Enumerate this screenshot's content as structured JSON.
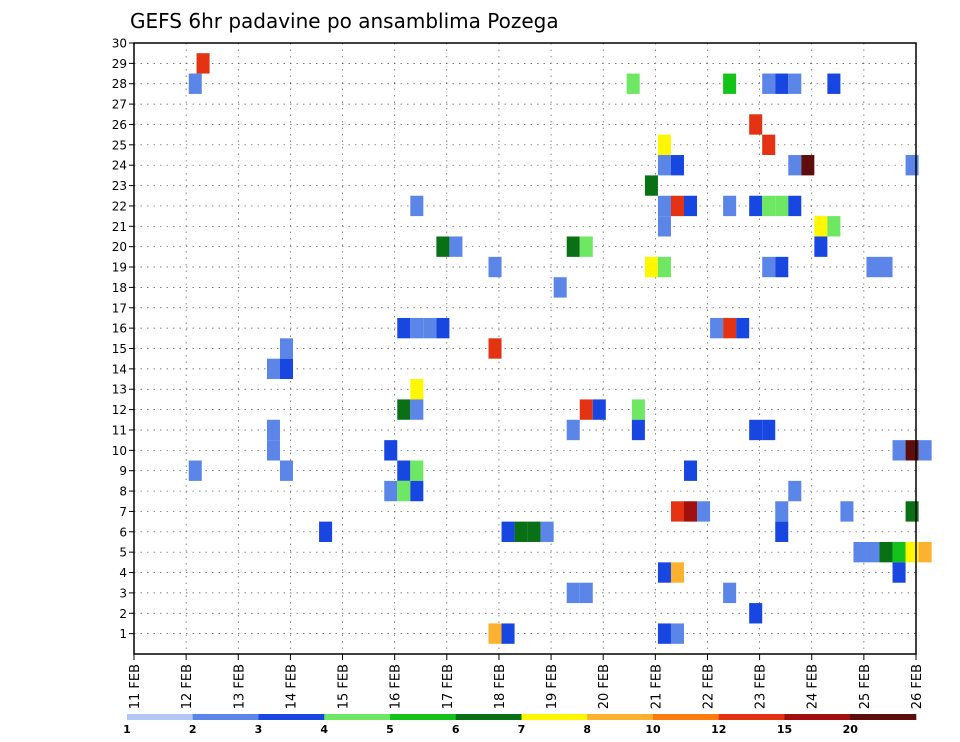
{
  "chart_data": {
    "type": "heatmap",
    "title": "GEFS 6hr padavine po ansamblima Pozega",
    "xlabel": "",
    "ylabel": "",
    "x_tick_labels": [
      "11 FEB",
      "12 FEB",
      "13 FEB",
      "14 FEB",
      "15 FEB",
      "16 FEB",
      "17 FEB",
      "18 FEB",
      "19 FEB",
      "20 FEB",
      "21 FEB",
      "22 FEB",
      "23 FEB",
      "24 FEB",
      "25 FEB",
      "26 FEB"
    ],
    "x_range_steps": [
      0,
      60
    ],
    "steps_per_day": 4,
    "y_tick_labels": [
      "1",
      "2",
      "3",
      "4",
      "5",
      "6",
      "7",
      "8",
      "9",
      "10",
      "11",
      "12",
      "13",
      "14",
      "15",
      "16",
      "17",
      "18",
      "19",
      "20",
      "21",
      "22",
      "23",
      "24",
      "25",
      "26",
      "27",
      "28",
      "29",
      "30"
    ],
    "y_range": [
      0,
      30
    ],
    "grid": true,
    "legend": {
      "placement": "bottom",
      "labels": [
        "1",
        "2",
        "3",
        "4",
        "5",
        "6",
        "7",
        "8",
        "10",
        "12",
        "15",
        "20"
      ],
      "colors": [
        "#b3c7f7",
        "#5b86e8",
        "#1746e0",
        "#6ee862",
        "#14c31a",
        "#0a7016",
        "#fff700",
        "#fcb22e",
        "#ff7b0d",
        "#e33312",
        "#a10f0f",
        "#5e0d0d"
      ]
    },
    "cells": [
      [
        4.8,
        29,
        9
      ],
      [
        4.2,
        28,
        1
      ],
      [
        37.8,
        28,
        3
      ],
      [
        45.2,
        28,
        4
      ],
      [
        48.2,
        28,
        1
      ],
      [
        49.2,
        28,
        2
      ],
      [
        50.2,
        28,
        1
      ],
      [
        53.2,
        28,
        2
      ],
      [
        47.2,
        26,
        9
      ],
      [
        48.2,
        25,
        9
      ],
      [
        40.2,
        25,
        6
      ],
      [
        40.2,
        24,
        1
      ],
      [
        41.2,
        24,
        2
      ],
      [
        50.2,
        24,
        1
      ],
      [
        51.2,
        24,
        11
      ],
      [
        59.2,
        24,
        1
      ],
      [
        39.2,
        23,
        5
      ],
      [
        21.2,
        22,
        1
      ],
      [
        40.2,
        22,
        1
      ],
      [
        41.2,
        22,
        9
      ],
      [
        42.2,
        22,
        2
      ],
      [
        45.2,
        22,
        1
      ],
      [
        47.2,
        22,
        2
      ],
      [
        48.2,
        22,
        3
      ],
      [
        49.2,
        22,
        3
      ],
      [
        50.2,
        22,
        2
      ],
      [
        40.2,
        21,
        1
      ],
      [
        52.2,
        21,
        6
      ],
      [
        53.2,
        21,
        3
      ],
      [
        23.2,
        20,
        5
      ],
      [
        24.2,
        20,
        1
      ],
      [
        33.2,
        20,
        5
      ],
      [
        34.2,
        20,
        3
      ],
      [
        52.2,
        20,
        2
      ],
      [
        27.2,
        19,
        1
      ],
      [
        39.2,
        19,
        6
      ],
      [
        40.2,
        19,
        3
      ],
      [
        48.2,
        19,
        1
      ],
      [
        49.2,
        19,
        2
      ],
      [
        56.2,
        19,
        1
      ],
      [
        57.2,
        19,
        1
      ],
      [
        32.2,
        18,
        1
      ],
      [
        20.2,
        16,
        2
      ],
      [
        21.2,
        16,
        1
      ],
      [
        22.2,
        16,
        1
      ],
      [
        23.2,
        16,
        2
      ],
      [
        44.2,
        16,
        1
      ],
      [
        45.2,
        16,
        9
      ],
      [
        46.2,
        16,
        2
      ],
      [
        11.2,
        15,
        1
      ],
      [
        27.2,
        15,
        9
      ],
      [
        10.2,
        14,
        1
      ],
      [
        11.2,
        14,
        2
      ],
      [
        21.2,
        13,
        6
      ],
      [
        20.2,
        12,
        5
      ],
      [
        21.2,
        12,
        1
      ],
      [
        34.2,
        12,
        9
      ],
      [
        35.2,
        12,
        2
      ],
      [
        38.2,
        12,
        3
      ],
      [
        10.2,
        11,
        1
      ],
      [
        33.2,
        11,
        1
      ],
      [
        38.2,
        11,
        2
      ],
      [
        47.2,
        11,
        2
      ],
      [
        48.2,
        11,
        2
      ],
      [
        10.2,
        10,
        1
      ],
      [
        19.2,
        10,
        2
      ],
      [
        58.2,
        10,
        1
      ],
      [
        59.2,
        10,
        11
      ],
      [
        60.2,
        10,
        1
      ],
      [
        4.2,
        9,
        1
      ],
      [
        11.2,
        9,
        1
      ],
      [
        20.2,
        9,
        2
      ],
      [
        21.2,
        9,
        3
      ],
      [
        42.2,
        9,
        2
      ],
      [
        19.2,
        8,
        1
      ],
      [
        20.2,
        8,
        3
      ],
      [
        21.2,
        8,
        2
      ],
      [
        50.2,
        8,
        1
      ],
      [
        41.2,
        7,
        9
      ],
      [
        42.2,
        7,
        10
      ],
      [
        43.2,
        7,
        1
      ],
      [
        49.2,
        7,
        1
      ],
      [
        54.2,
        7,
        1
      ],
      [
        59.2,
        7,
        5
      ],
      [
        14.2,
        6,
        2
      ],
      [
        28.2,
        6,
        2
      ],
      [
        29.2,
        6,
        5
      ],
      [
        30.2,
        6,
        5
      ],
      [
        31.2,
        6,
        1
      ],
      [
        49.2,
        6,
        2
      ],
      [
        55.2,
        5,
        1
      ],
      [
        56.2,
        5,
        1
      ],
      [
        57.2,
        5,
        5
      ],
      [
        58.2,
        5,
        4
      ],
      [
        59.2,
        5,
        6
      ],
      [
        60.2,
        5,
        7
      ],
      [
        40.2,
        4,
        2
      ],
      [
        41.2,
        4,
        7
      ],
      [
        58.2,
        4,
        2
      ],
      [
        33.2,
        3,
        1
      ],
      [
        34.2,
        3,
        1
      ],
      [
        45.2,
        3,
        1
      ],
      [
        47.2,
        2,
        2
      ],
      [
        27.2,
        1,
        7
      ],
      [
        28.2,
        1,
        2
      ],
      [
        40.2,
        1,
        2
      ],
      [
        41.2,
        1,
        1
      ]
    ]
  }
}
